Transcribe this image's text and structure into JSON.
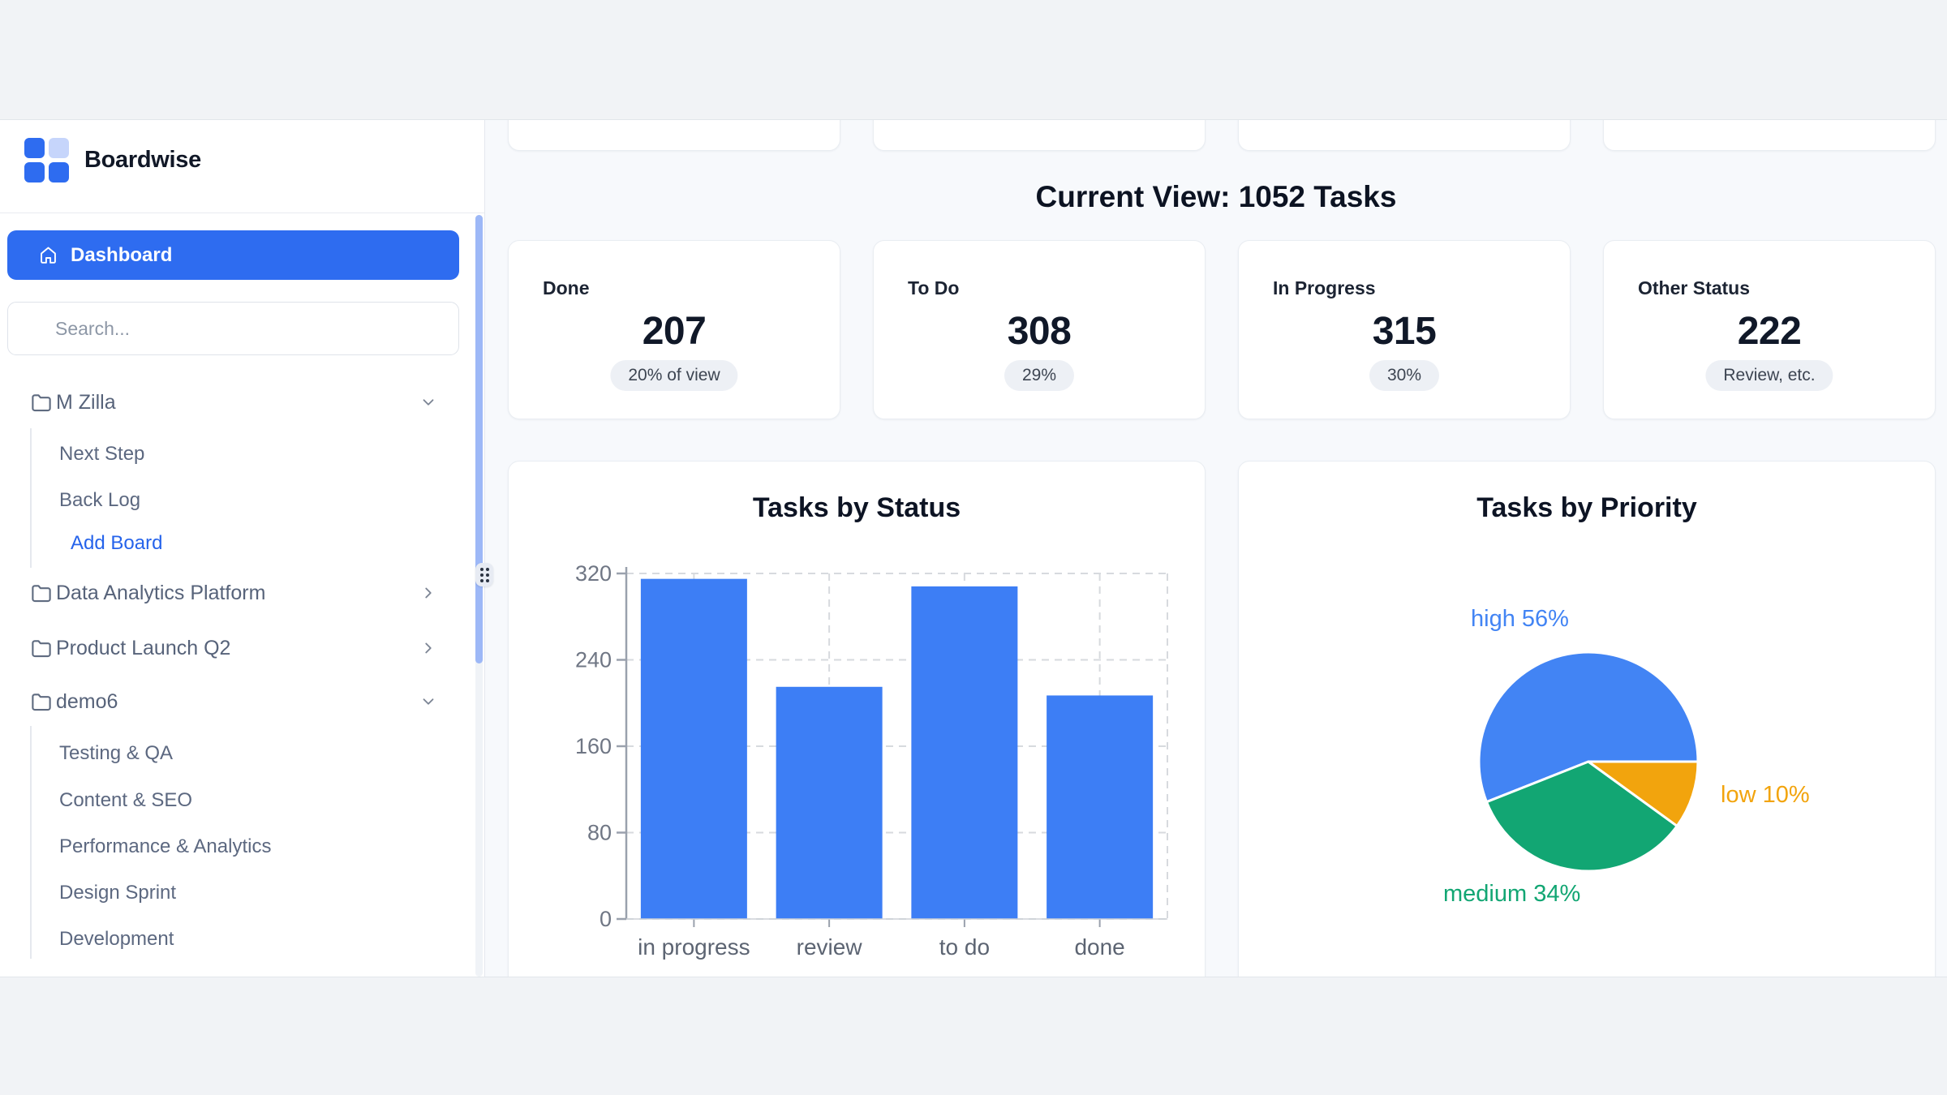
{
  "brand": {
    "name": "Boardwise"
  },
  "sidebar": {
    "dashboard": {
      "label": "Dashboard"
    },
    "search": {
      "placeholder": "Search..."
    },
    "nav": [
      {
        "label": "M Zilla",
        "expanded": true,
        "items": [
          {
            "label": "Next Step"
          },
          {
            "label": "Back Log"
          },
          {
            "label": "Add Board",
            "accent": true
          }
        ]
      },
      {
        "label": "Data Analytics Platform",
        "expanded": false,
        "items": []
      },
      {
        "label": "Product Launch Q2",
        "expanded": false,
        "items": []
      },
      {
        "label": "demo6",
        "expanded": true,
        "items": [
          {
            "label": "Testing & QA"
          },
          {
            "label": "Content & SEO"
          },
          {
            "label": "Performance & Analytics"
          },
          {
            "label": "Design Sprint"
          },
          {
            "label": "Development"
          }
        ]
      }
    ]
  },
  "main": {
    "heading": "Current View: 1052 Tasks",
    "stats": [
      {
        "label": "Done",
        "value": "207",
        "badge": "20% of view"
      },
      {
        "label": "To Do",
        "value": "308",
        "badge": "29%"
      },
      {
        "label": "In Progress",
        "value": "315",
        "badge": "30%"
      },
      {
        "label": "Other Status",
        "value": "222",
        "badge": "Review, etc."
      }
    ]
  },
  "chart_data": [
    {
      "type": "bar",
      "title": "Tasks by Status",
      "categories": [
        "in progress",
        "review",
        "to do",
        "done"
      ],
      "values": [
        315,
        215,
        308,
        207
      ],
      "xlabel": "",
      "ylabel": "",
      "ylim": [
        0,
        320
      ],
      "yticks": [
        0,
        80,
        160,
        240,
        320
      ],
      "grid": "dashed",
      "legend": "none",
      "bar_color": "#3d7ef5"
    },
    {
      "type": "pie",
      "title": "Tasks by Priority",
      "slices": [
        {
          "label": "high",
          "pct": 56,
          "color": "#4284f4",
          "display": "high 56%"
        },
        {
          "label": "medium",
          "pct": 34,
          "color": "#12a673",
          "display": "medium 34%"
        },
        {
          "label": "low",
          "pct": 10,
          "color": "#f2a40d",
          "display": "low 10%"
        }
      ],
      "labels_outside": true,
      "start_angle_deg": 0,
      "direction": "counterclockwise"
    }
  ],
  "colors": {
    "accent_blue": "#2e6cf0",
    "logo_light_blue": "#c6d5fb",
    "link_blue": "#2563eb",
    "bar_blue": "#3d7ef5",
    "pie_blue": "#4284f4",
    "pie_green": "#12a673",
    "pie_orange": "#f2a40d",
    "main_bg": "#f7f9fc",
    "band_bg": "#f1f3f6",
    "pill_bg": "#edf0f5",
    "scrollbar_blue": "#9db8f7"
  }
}
